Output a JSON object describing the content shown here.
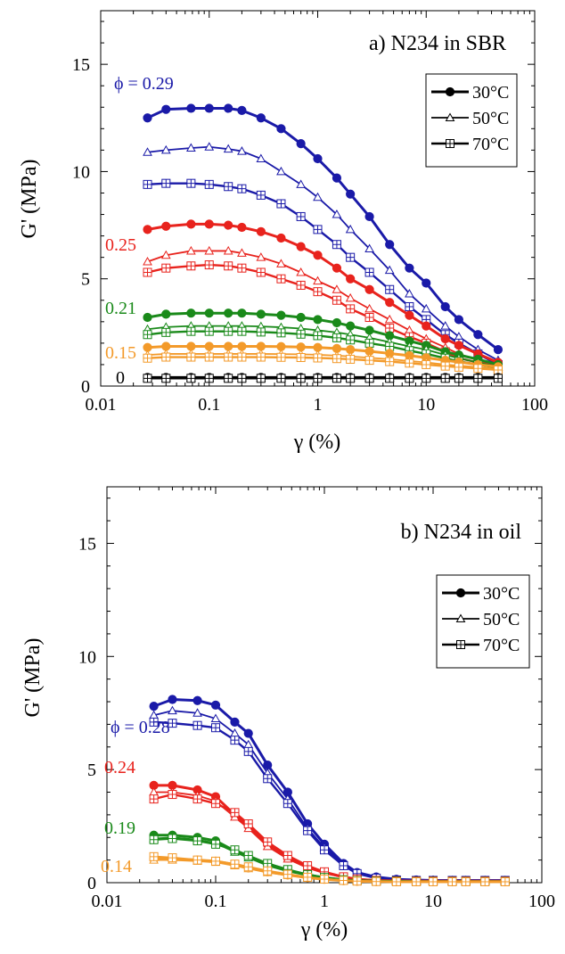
{
  "colors": {
    "phi_0.29": "#1a1aa8",
    "phi_0.28": "#1a1aa8",
    "phi_0.25": "#e8231d",
    "phi_0.24": "#e8231d",
    "phi_0.21": "#1a8a1a",
    "phi_0.19": "#1a8a1a",
    "phi_0.15": "#f39a2a",
    "phi_0.14": "#f39a2a",
    "phi_0": "#000000"
  },
  "chart_data": [
    {
      "type": "line",
      "title": "a) N234 in SBR",
      "xlabel": "γ (%)",
      "ylabel": "G' (MPa)",
      "xscale": "log",
      "xlim": [
        0.01,
        100
      ],
      "ylim": [
        0,
        17.5
      ],
      "xticks": [
        "0.01",
        "0.1",
        "1",
        "10",
        "100"
      ],
      "yticks": [
        "0",
        "5",
        "10",
        "15"
      ],
      "legend": {
        "placement": "top-right",
        "entries": [
          {
            "label": "30°C",
            "marker": "filled-circle"
          },
          {
            "label": "50°C",
            "marker": "open-triangle"
          },
          {
            "label": "70°C",
            "marker": "crossed-square"
          }
        ]
      },
      "phi_labels": [
        {
          "text": "ϕ = 0.29",
          "group": "phi_0.29"
        },
        {
          "text": "0.25",
          "group": "phi_0.25"
        },
        {
          "text": "0.21",
          "group": "phi_0.21"
        },
        {
          "text": "0.15",
          "group": "phi_0.15"
        },
        {
          "text": "0",
          "group": "phi_0"
        }
      ],
      "x": [
        0.027,
        0.04,
        0.068,
        0.1,
        0.15,
        0.2,
        0.3,
        0.46,
        0.7,
        1.0,
        1.5,
        2.0,
        3.0,
        4.6,
        7.0,
        10,
        15,
        20,
        30,
        46
      ],
      "series": [
        {
          "group": "phi_0.29",
          "marker": "filled-circle",
          "values": [
            12.5,
            12.9,
            12.95,
            12.95,
            12.95,
            12.85,
            12.5,
            12.0,
            11.3,
            10.6,
            9.7,
            8.95,
            7.9,
            6.6,
            5.5,
            4.8,
            3.7,
            3.1,
            2.4,
            1.7
          ]
        },
        {
          "group": "phi_0.29",
          "marker": "open-triangle",
          "values": [
            10.9,
            11.0,
            11.1,
            11.15,
            11.05,
            10.95,
            10.6,
            10.0,
            9.4,
            8.8,
            8.0,
            7.3,
            6.4,
            5.4,
            4.3,
            3.6,
            2.8,
            2.3,
            1.7,
            1.2
          ]
        },
        {
          "group": "phi_0.29",
          "marker": "crossed-square",
          "values": [
            9.4,
            9.45,
            9.45,
            9.4,
            9.3,
            9.2,
            8.9,
            8.5,
            7.9,
            7.3,
            6.6,
            6.0,
            5.3,
            4.5,
            3.7,
            3.1,
            2.4,
            2.0,
            1.5,
            1.0
          ]
        },
        {
          "group": "phi_0.25",
          "marker": "filled-circle",
          "values": [
            7.3,
            7.45,
            7.55,
            7.55,
            7.5,
            7.4,
            7.2,
            6.9,
            6.5,
            6.1,
            5.5,
            5.0,
            4.5,
            3.9,
            3.3,
            2.8,
            2.2,
            1.9,
            1.5,
            1.1
          ]
        },
        {
          "group": "phi_0.25",
          "marker": "open-triangle",
          "values": [
            5.8,
            6.1,
            6.3,
            6.3,
            6.3,
            6.2,
            6.0,
            5.7,
            5.3,
            4.9,
            4.5,
            4.1,
            3.6,
            3.1,
            2.6,
            2.2,
            1.8,
            1.5,
            1.2,
            0.9
          ]
        },
        {
          "group": "phi_0.25",
          "marker": "crossed-square",
          "values": [
            5.3,
            5.5,
            5.6,
            5.65,
            5.6,
            5.5,
            5.3,
            5.0,
            4.7,
            4.4,
            4.0,
            3.6,
            3.2,
            2.7,
            2.3,
            2.0,
            1.6,
            1.3,
            1.1,
            0.8
          ]
        },
        {
          "group": "phi_0.21",
          "marker": "filled-circle",
          "values": [
            3.2,
            3.35,
            3.4,
            3.4,
            3.4,
            3.4,
            3.35,
            3.3,
            3.2,
            3.1,
            2.95,
            2.8,
            2.6,
            2.35,
            2.1,
            1.9,
            1.6,
            1.45,
            1.25,
            1.0
          ]
        },
        {
          "group": "phi_0.21",
          "marker": "open-triangle",
          "values": [
            2.65,
            2.75,
            2.8,
            2.8,
            2.8,
            2.8,
            2.78,
            2.74,
            2.68,
            2.6,
            2.5,
            2.4,
            2.25,
            2.05,
            1.85,
            1.7,
            1.45,
            1.3,
            1.1,
            0.9
          ]
        },
        {
          "group": "phi_0.21",
          "marker": "crossed-square",
          "values": [
            2.4,
            2.5,
            2.55,
            2.55,
            2.55,
            2.55,
            2.52,
            2.48,
            2.42,
            2.35,
            2.25,
            2.15,
            2.0,
            1.85,
            1.65,
            1.5,
            1.3,
            1.15,
            1.0,
            0.85
          ]
        },
        {
          "group": "phi_0.15",
          "marker": "filled-circle",
          "values": [
            1.8,
            1.85,
            1.85,
            1.85,
            1.85,
            1.85,
            1.85,
            1.84,
            1.82,
            1.8,
            1.75,
            1.7,
            1.62,
            1.52,
            1.42,
            1.32,
            1.2,
            1.12,
            1.0,
            0.9
          ]
        },
        {
          "group": "phi_0.15",
          "marker": "open-triangle",
          "values": [
            1.45,
            1.5,
            1.5,
            1.5,
            1.5,
            1.5,
            1.5,
            1.49,
            1.48,
            1.46,
            1.42,
            1.38,
            1.32,
            1.25,
            1.17,
            1.1,
            1.0,
            0.95,
            0.88,
            0.8
          ]
        },
        {
          "group": "phi_0.15",
          "marker": "crossed-square",
          "values": [
            1.3,
            1.35,
            1.35,
            1.35,
            1.35,
            1.35,
            1.35,
            1.34,
            1.33,
            1.31,
            1.28,
            1.25,
            1.2,
            1.14,
            1.07,
            1.0,
            0.93,
            0.88,
            0.82,
            0.75
          ]
        },
        {
          "group": "phi_0",
          "marker": "filled-circle",
          "values": [
            0.4,
            0.4,
            0.4,
            0.4,
            0.4,
            0.4,
            0.4,
            0.4,
            0.4,
            0.4,
            0.4,
            0.4,
            0.4,
            0.4,
            0.4,
            0.4,
            0.4,
            0.4,
            0.4,
            0.4
          ]
        },
        {
          "group": "phi_0",
          "marker": "open-triangle",
          "values": [
            0.38,
            0.38,
            0.38,
            0.38,
            0.38,
            0.38,
            0.38,
            0.38,
            0.38,
            0.38,
            0.38,
            0.38,
            0.38,
            0.38,
            0.38,
            0.38,
            0.38,
            0.38,
            0.38,
            0.38
          ]
        },
        {
          "group": "phi_0",
          "marker": "crossed-square",
          "values": [
            0.36,
            0.36,
            0.36,
            0.36,
            0.36,
            0.36,
            0.36,
            0.36,
            0.36,
            0.36,
            0.36,
            0.36,
            0.36,
            0.36,
            0.36,
            0.36,
            0.36,
            0.36,
            0.36,
            0.36
          ]
        }
      ]
    },
    {
      "type": "line",
      "title": "b) N234 in oil",
      "xlabel": "γ (%)",
      "ylabel": "G' (MPa)",
      "xscale": "log",
      "xlim": [
        0.01,
        100
      ],
      "ylim": [
        0,
        17.5
      ],
      "xticks": [
        "0.01",
        "0.1",
        "1",
        "10",
        "100"
      ],
      "yticks": [
        "0",
        "5",
        "10",
        "15"
      ],
      "legend": {
        "placement": "top-right",
        "entries": [
          {
            "label": "30°C",
            "marker": "filled-circle"
          },
          {
            "label": "50°C",
            "marker": "open-triangle"
          },
          {
            "label": "70°C",
            "marker": "crossed-square"
          }
        ]
      },
      "phi_labels": [
        {
          "text": "ϕ = 0.28",
          "group": "phi_0.28"
        },
        {
          "text": "0.24",
          "group": "phi_0.24"
        },
        {
          "text": "0.19",
          "group": "phi_0.19"
        },
        {
          "text": "0.14",
          "group": "phi_0.14"
        }
      ],
      "x": [
        0.027,
        0.04,
        0.068,
        0.1,
        0.15,
        0.2,
        0.3,
        0.46,
        0.7,
        1.0,
        1.5,
        2.0,
        3.0,
        4.6,
        7.0,
        10,
        15,
        20,
        30,
        46
      ],
      "series": [
        {
          "group": "phi_0.28",
          "marker": "filled-circle",
          "values": [
            7.8,
            8.1,
            8.05,
            7.85,
            7.1,
            6.6,
            5.2,
            4.0,
            2.6,
            1.7,
            0.85,
            0.45,
            0.25,
            0.15,
            0.12,
            0.1,
            0.1,
            0.1,
            0.1,
            0.1
          ]
        },
        {
          "group": "phi_0.28",
          "marker": "open-triangle",
          "values": [
            7.4,
            7.6,
            7.5,
            7.25,
            6.6,
            6.1,
            4.85,
            3.7,
            2.4,
            1.55,
            0.8,
            0.42,
            0.22,
            0.14,
            0.1,
            0.1,
            0.1,
            0.1,
            0.1,
            0.1
          ]
        },
        {
          "group": "phi_0.28",
          "marker": "crossed-square",
          "values": [
            7.1,
            7.05,
            6.95,
            6.85,
            6.3,
            5.8,
            4.6,
            3.5,
            2.3,
            1.45,
            0.75,
            0.4,
            0.2,
            0.12,
            0.1,
            0.1,
            0.1,
            0.1,
            0.1,
            0.1
          ]
        },
        {
          "group": "phi_0.24",
          "marker": "filled-circle",
          "values": [
            4.3,
            4.3,
            4.1,
            3.8,
            3.0,
            2.5,
            1.7,
            1.1,
            0.7,
            0.45,
            0.25,
            0.15,
            0.1,
            0.08,
            0.07,
            0.07,
            0.07,
            0.07,
            0.07,
            0.07
          ]
        },
        {
          "group": "phi_0.24",
          "marker": "open-triangle",
          "values": [
            4.0,
            4.0,
            3.85,
            3.6,
            2.9,
            2.4,
            1.6,
            1.05,
            0.65,
            0.42,
            0.23,
            0.14,
            0.1,
            0.08,
            0.07,
            0.07,
            0.07,
            0.07,
            0.07,
            0.07
          ]
        },
        {
          "group": "phi_0.24",
          "marker": "crossed-square",
          "values": [
            3.7,
            3.9,
            3.7,
            3.5,
            3.1,
            2.6,
            1.8,
            1.2,
            0.75,
            0.48,
            0.26,
            0.16,
            0.1,
            0.08,
            0.07,
            0.07,
            0.07,
            0.07,
            0.07,
            0.07
          ]
        },
        {
          "group": "phi_0.19",
          "marker": "filled-circle",
          "values": [
            2.1,
            2.1,
            2.0,
            1.85,
            1.4,
            1.15,
            0.8,
            0.55,
            0.35,
            0.22,
            0.13,
            0.09,
            0.07,
            0.06,
            0.05,
            0.05,
            0.05,
            0.05,
            0.05,
            0.05
          ]
        },
        {
          "group": "phi_0.19",
          "marker": "open-triangle",
          "values": [
            1.95,
            2.0,
            1.9,
            1.75,
            1.35,
            1.1,
            0.75,
            0.5,
            0.32,
            0.2,
            0.12,
            0.08,
            0.06,
            0.05,
            0.05,
            0.05,
            0.05,
            0.05,
            0.05,
            0.05
          ]
        },
        {
          "group": "phi_0.19",
          "marker": "crossed-square",
          "values": [
            1.9,
            1.95,
            1.85,
            1.7,
            1.45,
            1.2,
            0.85,
            0.58,
            0.36,
            0.23,
            0.13,
            0.09,
            0.07,
            0.06,
            0.05,
            0.05,
            0.05,
            0.05,
            0.05,
            0.05
          ]
        },
        {
          "group": "phi_0.14",
          "marker": "filled-circle",
          "values": [
            1.05,
            1.05,
            1.0,
            0.95,
            0.8,
            0.65,
            0.48,
            0.34,
            0.22,
            0.15,
            0.09,
            0.06,
            0.05,
            0.04,
            0.04,
            0.04,
            0.04,
            0.04,
            0.04,
            0.04
          ]
        },
        {
          "group": "phi_0.14",
          "marker": "open-triangle",
          "values": [
            1.0,
            1.0,
            0.95,
            0.9,
            0.75,
            0.62,
            0.45,
            0.32,
            0.21,
            0.14,
            0.08,
            0.06,
            0.05,
            0.04,
            0.04,
            0.04,
            0.04,
            0.04,
            0.04,
            0.04
          ]
        },
        {
          "group": "phi_0.14",
          "marker": "crossed-square",
          "values": [
            1.15,
            1.1,
            1.0,
            0.95,
            0.82,
            0.7,
            0.52,
            0.37,
            0.24,
            0.16,
            0.1,
            0.07,
            0.05,
            0.04,
            0.04,
            0.04,
            0.04,
            0.04,
            0.04,
            0.04
          ]
        }
      ]
    }
  ]
}
